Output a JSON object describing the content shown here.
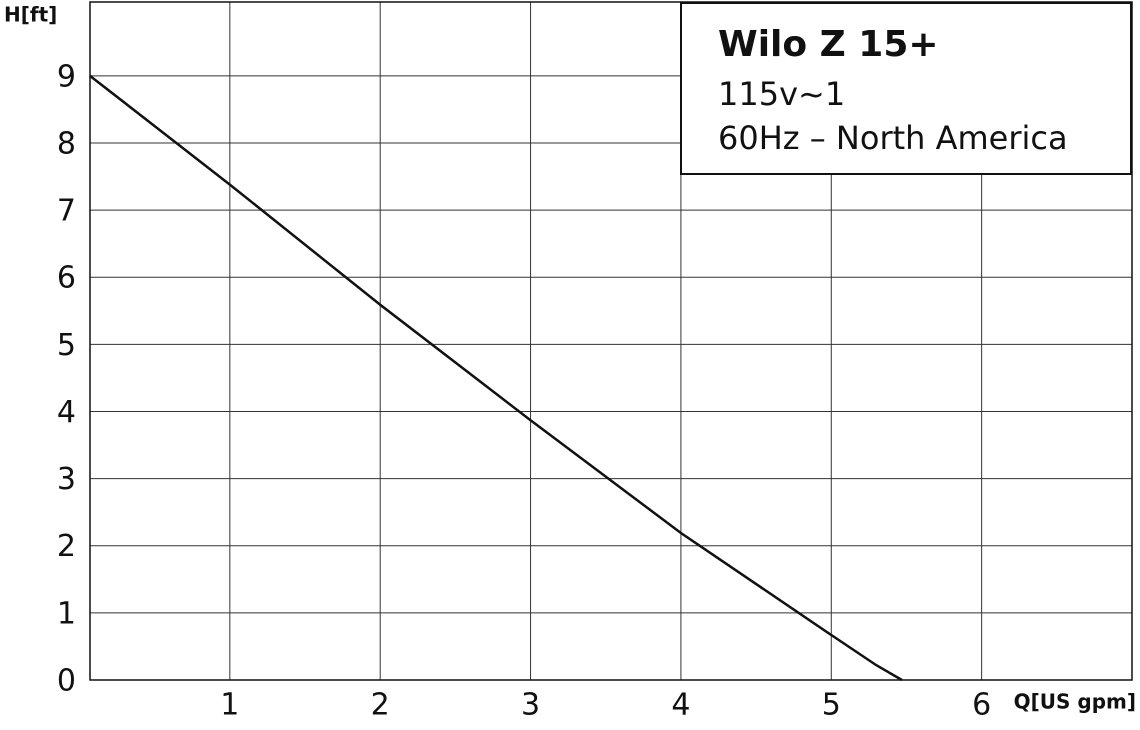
{
  "chart_data": {
    "type": "line",
    "title": "Wilo Z 15+",
    "annotations": [
      "115v~1",
      "60Hz – North America"
    ],
    "x_label": "Q[US gpm]",
    "y_label": "H[ft]",
    "x": [
      0.07,
      1,
      2,
      3,
      4,
      5,
      5.3,
      5.47
    ],
    "series": [
      {
        "name": "Wilo Z 15+",
        "color": "#111111",
        "values": [
          9,
          7.38,
          5.59,
          3.87,
          2.19,
          0.67,
          0.22,
          0
        ]
      }
    ],
    "xlim": [
      0.07,
      7.0
    ],
    "xticks": [
      1,
      2,
      3,
      4,
      5,
      6
    ],
    "ylim": [
      0,
      10.1
    ],
    "yticks": [
      0,
      1,
      2,
      3,
      4,
      5,
      6,
      7,
      8,
      9
    ],
    "grid": true
  }
}
